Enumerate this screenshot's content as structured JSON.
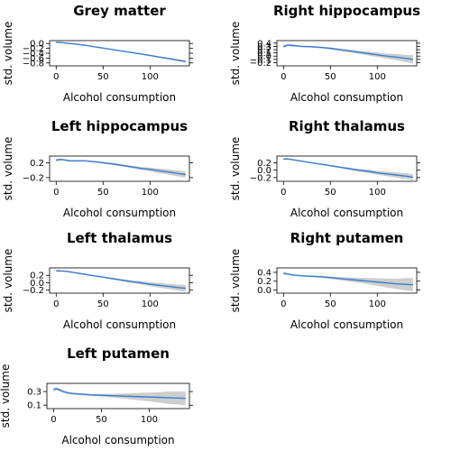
{
  "figure": {
    "background": "#ffffff"
  },
  "style": {
    "line_color": "#3a7dcf",
    "band_color": "#bdbdbd"
  },
  "chart_data": [
    {
      "type": "line",
      "title": "Grey matter",
      "xlabel": "Alcohol consumption",
      "ylabel": "std. volume",
      "xlim": [
        -7,
        142
      ],
      "ylim": [
        -0.92,
        0.12
      ],
      "xticks": [
        0,
        50,
        100
      ],
      "yticks": [
        0.0,
        -0.2,
        -0.4,
        -0.6,
        -0.8
      ],
      "ytick_labels": [
        "0.0",
        "−0.2",
        "−0.4",
        "−0.6",
        "−0.8"
      ],
      "grid": false,
      "series": [
        {
          "x": [
            0,
            5,
            10,
            20,
            30,
            40,
            50,
            60,
            70,
            80,
            90,
            100,
            110,
            120,
            130,
            138
          ],
          "y": [
            0.05,
            0.04,
            0.02,
            -0.02,
            -0.07,
            -0.13,
            -0.19,
            -0.25,
            -0.31,
            -0.37,
            -0.43,
            -0.49,
            -0.56,
            -0.62,
            -0.69,
            -0.74
          ],
          "lower": [
            0.03,
            0.025,
            0.005,
            -0.035,
            -0.085,
            -0.145,
            -0.205,
            -0.27,
            -0.33,
            -0.395,
            -0.455,
            -0.52,
            -0.59,
            -0.66,
            -0.73,
            -0.79
          ],
          "upper": [
            0.07,
            0.055,
            0.035,
            -0.005,
            -0.055,
            -0.115,
            -0.175,
            -0.23,
            -0.29,
            -0.345,
            -0.405,
            -0.46,
            -0.53,
            -0.58,
            -0.65,
            -0.69
          ]
        }
      ]
    },
    {
      "type": "line",
      "title": "Right hippocampus",
      "xlabel": "Alcohol consumption",
      "ylabel": "std. volume",
      "xlim": [
        -7,
        142
      ],
      "ylim": [
        -0.3,
        0.48
      ],
      "xticks": [
        0,
        50,
        100
      ],
      "yticks": [
        0.4,
        0.3,
        0.2,
        0.1,
        0.0,
        -0.1,
        -0.2
      ],
      "ytick_labels": [
        "0.4",
        "0.3",
        "0.2",
        "0.1",
        "0.0",
        "−0.1",
        "−0.2"
      ],
      "grid": false,
      "series": [
        {
          "x": [
            0,
            5,
            10,
            15,
            20,
            30,
            40,
            50,
            60,
            70,
            80,
            90,
            100,
            110,
            120,
            130,
            138
          ],
          "y": [
            0.3,
            0.34,
            0.33,
            0.31,
            0.3,
            0.29,
            0.27,
            0.24,
            0.2,
            0.16,
            0.12,
            0.08,
            0.04,
            0.0,
            -0.03,
            -0.07,
            -0.1
          ],
          "lower": [
            0.25,
            0.31,
            0.3,
            0.285,
            0.275,
            0.265,
            0.245,
            0.21,
            0.165,
            0.12,
            0.07,
            0.02,
            -0.03,
            -0.08,
            -0.13,
            -0.18,
            -0.23
          ],
          "upper": [
            0.35,
            0.37,
            0.36,
            0.335,
            0.325,
            0.315,
            0.295,
            0.27,
            0.235,
            0.2,
            0.17,
            0.14,
            0.11,
            0.08,
            0.07,
            0.04,
            0.03
          ]
        }
      ]
    },
    {
      "type": "line",
      "title": "Left hippocampus",
      "xlabel": "Alcohol consumption",
      "ylabel": "std. volume",
      "xlim": [
        -7,
        142
      ],
      "ylim": [
        -0.3,
        0.38
      ],
      "xticks": [
        0,
        50,
        100
      ],
      "yticks": [
        0.2,
        -0.2
      ],
      "ytick_labels": [
        "0.2",
        "−0.2"
      ],
      "grid": false,
      "series": [
        {
          "x": [
            0,
            5,
            10,
            15,
            20,
            30,
            40,
            50,
            60,
            70,
            80,
            90,
            100,
            110,
            120,
            130,
            138
          ],
          "y": [
            0.27,
            0.29,
            0.27,
            0.25,
            0.25,
            0.25,
            0.23,
            0.2,
            0.17,
            0.13,
            0.09,
            0.05,
            0.02,
            -0.02,
            -0.05,
            -0.09,
            -0.12
          ],
          "lower": [
            0.23,
            0.265,
            0.25,
            0.23,
            0.23,
            0.23,
            0.21,
            0.175,
            0.14,
            0.1,
            0.055,
            0.01,
            -0.03,
            -0.08,
            -0.12,
            -0.17,
            -0.2
          ],
          "upper": [
            0.31,
            0.315,
            0.29,
            0.27,
            0.27,
            0.27,
            0.25,
            0.225,
            0.2,
            0.16,
            0.125,
            0.09,
            0.07,
            0.04,
            0.02,
            -0.01,
            -0.04
          ]
        }
      ]
    },
    {
      "type": "line",
      "title": "Right thalamus",
      "xlabel": "Alcohol consumption",
      "ylabel": "std. volume",
      "xlim": [
        -7,
        142
      ],
      "ylim": [
        -0.3,
        0.38
      ],
      "xticks": [
        0,
        50,
        100
      ],
      "yticks": [
        0.2,
        0.0,
        -0.2
      ],
      "ytick_labels": [
        "0.2",
        "0.0",
        "−0.2"
      ],
      "grid": false,
      "series": [
        {
          "x": [
            0,
            5,
            10,
            20,
            30,
            40,
            50,
            60,
            70,
            80,
            90,
            100,
            110,
            120,
            130,
            138
          ],
          "y": [
            0.3,
            0.3,
            0.28,
            0.24,
            0.2,
            0.16,
            0.12,
            0.08,
            0.04,
            0.0,
            -0.03,
            -0.07,
            -0.1,
            -0.13,
            -0.16,
            -0.19
          ],
          "lower": [
            0.27,
            0.28,
            0.265,
            0.225,
            0.185,
            0.145,
            0.1,
            0.055,
            0.01,
            -0.035,
            -0.075,
            -0.12,
            -0.16,
            -0.2,
            -0.24,
            -0.27
          ],
          "upper": [
            0.33,
            0.32,
            0.295,
            0.255,
            0.215,
            0.175,
            0.14,
            0.105,
            0.07,
            0.035,
            0.015,
            -0.02,
            -0.04,
            -0.06,
            -0.08,
            -0.11
          ]
        }
      ]
    },
    {
      "type": "line",
      "title": "Left thalamus",
      "xlabel": "Alcohol consumption",
      "ylabel": "std. volume",
      "xlim": [
        -7,
        142
      ],
      "ylim": [
        -0.28,
        0.4
      ],
      "xticks": [
        0,
        50,
        100
      ],
      "yticks": [
        0.2,
        0.0,
        -0.2
      ],
      "ytick_labels": [
        "0.2",
        "0.0",
        "−0.2"
      ],
      "grid": false,
      "series": [
        {
          "x": [
            0,
            5,
            10,
            20,
            30,
            40,
            50,
            60,
            70,
            80,
            90,
            100,
            110,
            120,
            130,
            138
          ],
          "y": [
            0.32,
            0.32,
            0.31,
            0.27,
            0.23,
            0.19,
            0.15,
            0.11,
            0.07,
            0.03,
            0.0,
            -0.04,
            -0.07,
            -0.1,
            -0.13,
            -0.15
          ],
          "lower": [
            0.29,
            0.3,
            0.295,
            0.255,
            0.215,
            0.175,
            0.13,
            0.085,
            0.04,
            -0.005,
            -0.045,
            -0.09,
            -0.13,
            -0.17,
            -0.21,
            -0.24
          ],
          "upper": [
            0.35,
            0.34,
            0.325,
            0.285,
            0.245,
            0.205,
            0.17,
            0.135,
            0.1,
            0.065,
            0.045,
            0.01,
            -0.01,
            -0.03,
            -0.05,
            -0.06
          ]
        }
      ]
    },
    {
      "type": "line",
      "title": "Right putamen",
      "xlabel": "Alcohol consumption",
      "ylabel": "std. volume",
      "xlim": [
        -7,
        142
      ],
      "ylim": [
        -0.07,
        0.5
      ],
      "xticks": [
        0,
        50,
        100
      ],
      "yticks": [
        0.4,
        0.2,
        0.0
      ],
      "ytick_labels": [
        "0.4",
        "0.2",
        "0.0"
      ],
      "grid": false,
      "series": [
        {
          "x": [
            0,
            5,
            10,
            20,
            30,
            40,
            50,
            60,
            70,
            80,
            90,
            100,
            110,
            120,
            130,
            138
          ],
          "y": [
            0.38,
            0.36,
            0.34,
            0.32,
            0.31,
            0.3,
            0.28,
            0.26,
            0.24,
            0.22,
            0.2,
            0.18,
            0.16,
            0.14,
            0.13,
            0.12
          ],
          "lower": [
            0.35,
            0.34,
            0.325,
            0.305,
            0.29,
            0.275,
            0.25,
            0.225,
            0.195,
            0.165,
            0.13,
            0.095,
            0.06,
            0.025,
            -0.01,
            -0.03
          ],
          "upper": [
            0.41,
            0.38,
            0.355,
            0.335,
            0.33,
            0.325,
            0.31,
            0.295,
            0.285,
            0.275,
            0.27,
            0.265,
            0.26,
            0.255,
            0.27,
            0.27
          ]
        }
      ]
    },
    {
      "type": "line",
      "title": "Left putamen",
      "xlabel": "Alcohol consumption",
      "ylabel": "std. volume",
      "xlim": [
        -7,
        142
      ],
      "ylim": [
        0.05,
        0.42
      ],
      "xticks": [
        0,
        50,
        100
      ],
      "yticks": [
        0.3,
        0.1
      ],
      "ytick_labels": [
        "0.3",
        "0.1"
      ],
      "grid": false,
      "series": [
        {
          "x": [
            0,
            3,
            7,
            10,
            15,
            20,
            30,
            40,
            50,
            60,
            70,
            80,
            90,
            100,
            110,
            120,
            130,
            138
          ],
          "y": [
            0.33,
            0.34,
            0.32,
            0.3,
            0.28,
            0.27,
            0.26,
            0.25,
            0.245,
            0.24,
            0.235,
            0.23,
            0.225,
            0.22,
            0.215,
            0.21,
            0.205,
            0.2
          ],
          "lower": [
            0.3,
            0.32,
            0.3,
            0.285,
            0.265,
            0.255,
            0.245,
            0.235,
            0.225,
            0.215,
            0.2,
            0.185,
            0.17,
            0.155,
            0.14,
            0.12,
            0.11,
            0.1
          ],
          "upper": [
            0.36,
            0.36,
            0.34,
            0.315,
            0.295,
            0.285,
            0.275,
            0.265,
            0.265,
            0.265,
            0.27,
            0.275,
            0.28,
            0.285,
            0.29,
            0.3,
            0.3,
            0.3
          ]
        }
      ]
    }
  ]
}
